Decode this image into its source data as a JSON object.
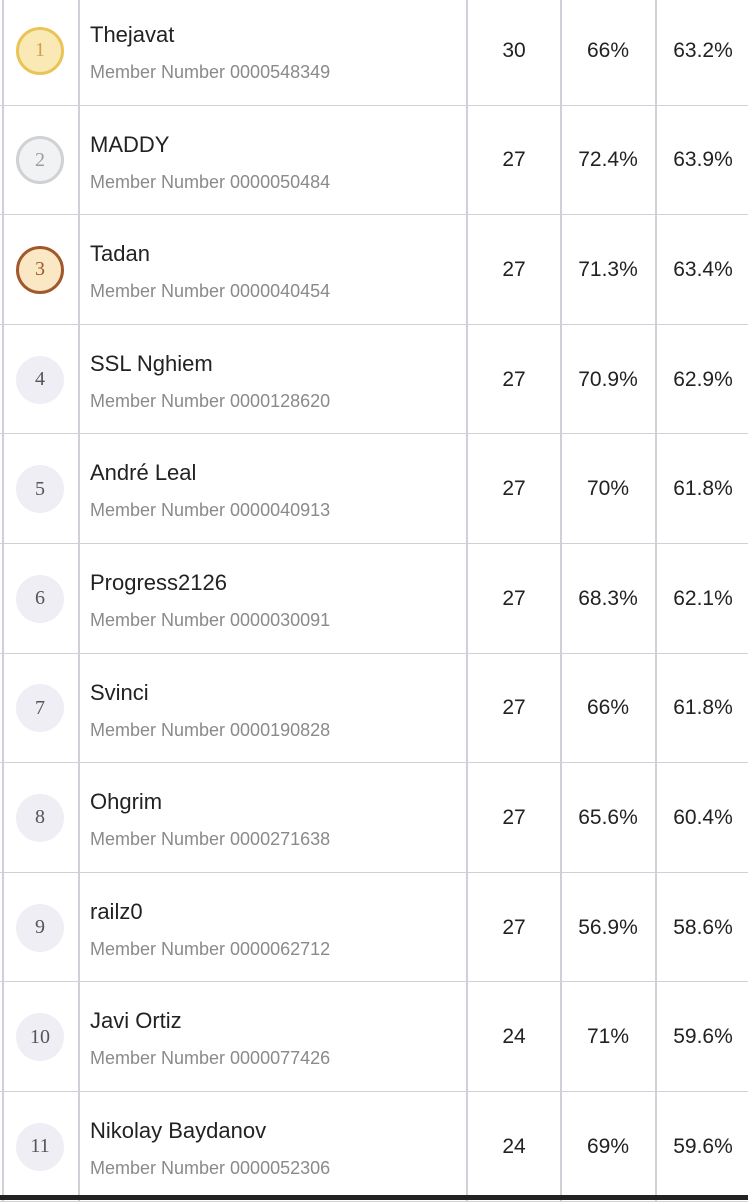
{
  "table": {
    "rows": [
      {
        "rank": 1,
        "name": "Thejavat",
        "member": "Member Number 0000548349",
        "score": 30,
        "pct1": "66%",
        "pct2": "63.2%"
      },
      {
        "rank": 2,
        "name": "MADDY",
        "member": "Member Number 0000050484",
        "score": 27,
        "pct1": "72.4%",
        "pct2": "63.9%"
      },
      {
        "rank": 3,
        "name": "Tadan",
        "member": "Member Number 0000040454",
        "score": 27,
        "pct1": "71.3%",
        "pct2": "63.4%"
      },
      {
        "rank": 4,
        "name": "SSL Nghiem",
        "member": "Member Number 0000128620",
        "score": 27,
        "pct1": "70.9%",
        "pct2": "62.9%"
      },
      {
        "rank": 5,
        "name": "André Leal",
        "member": "Member Number 0000040913",
        "score": 27,
        "pct1": "70%",
        "pct2": "61.8%"
      },
      {
        "rank": 6,
        "name": "Progress2126",
        "member": "Member Number 0000030091",
        "score": 27,
        "pct1": "68.3%",
        "pct2": "62.1%"
      },
      {
        "rank": 7,
        "name": "Svinci",
        "member": "Member Number 0000190828",
        "score": 27,
        "pct1": "66%",
        "pct2": "61.8%"
      },
      {
        "rank": 8,
        "name": "Ohgrim",
        "member": "Member Number 0000271638",
        "score": 27,
        "pct1": "65.6%",
        "pct2": "60.4%"
      },
      {
        "rank": 9,
        "name": "railz0",
        "member": "Member Number 0000062712",
        "score": 27,
        "pct1": "56.9%",
        "pct2": "58.6%"
      },
      {
        "rank": 10,
        "name": "Javi Ortiz",
        "member": "Member Number 0000077426",
        "score": 24,
        "pct1": "71%",
        "pct2": "59.6%"
      },
      {
        "rank": 11,
        "name": "Nikolay Baydanov",
        "member": "Member Number 0000052306",
        "score": 24,
        "pct1": "69%",
        "pct2": "59.6%"
      }
    ]
  }
}
